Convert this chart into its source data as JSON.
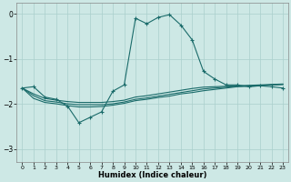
{
  "xlabel": "Humidex (Indice chaleur)",
  "xlim": [
    -0.5,
    23.5
  ],
  "ylim": [
    -3.3,
    0.25
  ],
  "yticks": [
    0,
    -1,
    -2,
    -3
  ],
  "xticks": [
    0,
    1,
    2,
    3,
    4,
    5,
    6,
    7,
    8,
    9,
    10,
    11,
    12,
    13,
    14,
    15,
    16,
    17,
    18,
    19,
    20,
    21,
    22,
    23
  ],
  "bg_color": "#cde8e5",
  "grid_color": "#aacfcc",
  "line_color": "#1a6b6a",
  "line1_x": [
    0,
    1,
    2,
    3,
    4,
    5,
    6,
    7,
    8,
    9,
    10,
    11,
    12,
    13,
    14,
    15,
    16,
    17,
    18,
    19,
    20,
    21,
    22,
    23
  ],
  "line1_y": [
    -1.65,
    -1.62,
    -1.85,
    -1.9,
    -2.05,
    -2.42,
    -2.3,
    -2.18,
    -1.72,
    -1.58,
    -0.1,
    -0.22,
    -0.08,
    -0.02,
    -0.25,
    -0.58,
    -1.28,
    -1.45,
    -1.58,
    -1.58,
    -1.62,
    -1.6,
    -1.62,
    -1.65
  ],
  "line2_x": [
    0,
    1,
    2,
    3,
    4,
    5,
    6,
    7,
    8,
    9,
    10,
    11,
    12,
    13,
    14,
    15,
    16,
    17,
    18,
    19,
    20,
    21,
    22,
    23
  ],
  "line2_y": [
    -1.65,
    -1.78,
    -1.88,
    -1.92,
    -1.95,
    -1.97,
    -1.97,
    -1.97,
    -1.95,
    -1.92,
    -1.85,
    -1.82,
    -1.78,
    -1.74,
    -1.7,
    -1.66,
    -1.63,
    -1.62,
    -1.61,
    -1.6,
    -1.59,
    -1.58,
    -1.57,
    -1.56
  ],
  "line3_x": [
    0,
    1,
    2,
    3,
    4,
    5,
    6,
    7,
    8,
    9,
    10,
    11,
    12,
    13,
    14,
    15,
    16,
    17,
    18,
    19,
    20,
    21,
    22,
    23
  ],
  "line3_y": [
    -1.65,
    -1.82,
    -1.93,
    -1.96,
    -2.0,
    -2.02,
    -2.02,
    -2.02,
    -2.0,
    -1.96,
    -1.9,
    -1.87,
    -1.83,
    -1.79,
    -1.75,
    -1.71,
    -1.67,
    -1.65,
    -1.63,
    -1.61,
    -1.6,
    -1.59,
    -1.58,
    -1.57
  ],
  "line4_x": [
    0,
    1,
    2,
    3,
    4,
    5,
    6,
    7,
    8,
    9,
    10,
    11,
    12,
    13,
    14,
    15,
    16,
    17,
    18,
    19,
    20,
    21,
    22,
    23
  ],
  "line4_y": [
    -1.65,
    -1.88,
    -1.97,
    -2.0,
    -2.04,
    -2.07,
    -2.07,
    -2.06,
    -2.03,
    -1.99,
    -1.93,
    -1.9,
    -1.86,
    -1.83,
    -1.78,
    -1.75,
    -1.71,
    -1.68,
    -1.65,
    -1.62,
    -1.61,
    -1.6,
    -1.58,
    -1.57
  ]
}
